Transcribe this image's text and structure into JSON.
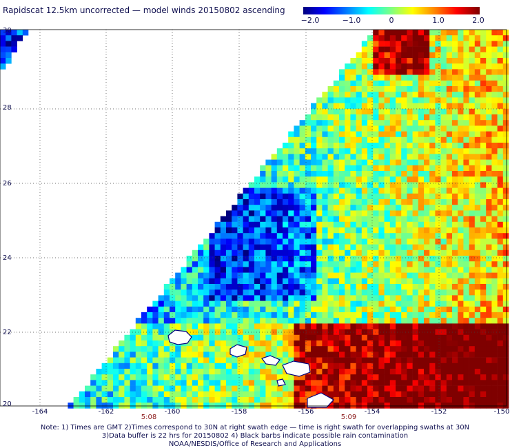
{
  "title": "Rapidscat 12.5km uncorrected — model winds 20150802 ascending",
  "colorbar": {
    "labels": [
      "−2.0",
      "−1.0",
      "0",
      "1.0",
      "2.0"
    ],
    "colors": [
      "#00007f",
      "#0000ff",
      "#0080ff",
      "#00ffff",
      "#80ff80",
      "#ffff00",
      "#ff8000",
      "#ff0000",
      "#7f0000"
    ]
  },
  "axes": {
    "lat_labels": [
      "30",
      "28",
      "26",
      "24",
      "22",
      "20"
    ],
    "lon_labels": [
      "-164",
      "-162",
      "-160",
      "-158",
      "-156",
      "-154",
      "-152",
      "-150"
    ],
    "lat_range": [
      20,
      30
    ],
    "lon_range": [
      -165,
      -150
    ],
    "grid": true
  },
  "times": [
    "5:08",
    "5:09"
  ],
  "notes": [
    "Note: 1) Times are GMT 2)Times correspond to 30N at right swath edge — time is right swath for overlapping swaths at 30N",
    "3)Data buffer is 22 hrs for 20150802 4) Black barbs indicate possible rain contamination",
    "NOAA/NESDIS/Office of Research and Applications"
  ],
  "islands_color": "#000080"
}
